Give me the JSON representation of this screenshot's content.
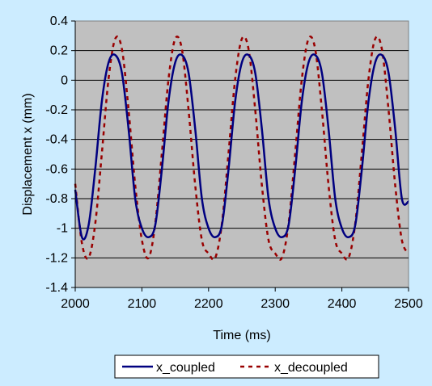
{
  "chart_data": {
    "type": "line",
    "title": "",
    "xlabel": "Time (ms)",
    "ylabel": "Displacement x (mm)",
    "xlim": [
      2000,
      2500
    ],
    "ylim": [
      -1.4,
      0.4
    ],
    "x_ticks": [
      2000,
      2100,
      2200,
      2300,
      2400,
      2500
    ],
    "y_ticks": [
      0.4,
      0.2,
      0,
      -0.2,
      -0.4,
      -0.6,
      -0.8,
      -1,
      -1.2,
      -1.4
    ],
    "x_tick_labels": [
      "2000",
      "2100",
      "2200",
      "2300",
      "2400",
      "2500"
    ],
    "y_tick_labels": [
      "0.4",
      "0.2",
      "0",
      "-0.2",
      "-0.4",
      "-0.6",
      "-0.8",
      "-1",
      "-1.2",
      "-1.4"
    ],
    "grid": true,
    "plot_background": "#c0c0c0",
    "page_background": "#ccecff",
    "legend_position": "bottom",
    "x": [
      2000,
      2010,
      2020,
      2030,
      2040,
      2050,
      2060,
      2070,
      2080,
      2090,
      2100,
      2110,
      2120,
      2130,
      2140,
      2150,
      2160,
      2170,
      2180,
      2190,
      2200,
      2210,
      2220,
      2230,
      2240,
      2250,
      2260,
      2270,
      2280,
      2290,
      2300,
      2310,
      2320,
      2330,
      2340,
      2350,
      2360,
      2370,
      2380,
      2390,
      2400,
      2410,
      2420,
      2430,
      2440,
      2450,
      2460,
      2470,
      2480,
      2490,
      2500
    ],
    "series": [
      {
        "name": "x_coupled",
        "color": "#000080",
        "line_style": "solid",
        "values": [
          -0.74,
          -1.06,
          -0.98,
          -0.6,
          -0.14,
          0.12,
          0.17,
          0.05,
          -0.33,
          -0.8,
          -1.0,
          -1.06,
          -0.98,
          -0.6,
          -0.14,
          0.12,
          0.17,
          0.05,
          -0.33,
          -0.8,
          -1.0,
          -1.06,
          -0.98,
          -0.6,
          -0.14,
          0.12,
          0.17,
          0.05,
          -0.33,
          -0.8,
          -1.0,
          -1.06,
          -0.98,
          -0.6,
          -0.14,
          0.12,
          0.17,
          0.05,
          -0.33,
          -0.8,
          -1.0,
          -1.06,
          -0.98,
          -0.6,
          -0.14,
          0.12,
          0.17,
          0.05,
          -0.33,
          -0.8,
          -0.82
        ]
      },
      {
        "name": "x_decoupled",
        "color": "#990000",
        "line_style": "dashed",
        "values": [
          -0.7,
          -1.1,
          -1.2,
          -0.97,
          -0.49,
          0.01,
          0.28,
          0.21,
          -0.2,
          -0.71,
          -1.08,
          -1.2,
          -0.97,
          -0.49,
          0.01,
          0.28,
          0.21,
          -0.2,
          -0.71,
          -1.08,
          -1.17,
          -1.2,
          -0.97,
          -0.49,
          0.01,
          0.28,
          0.21,
          -0.2,
          -0.71,
          -1.08,
          -1.17,
          -1.2,
          -0.97,
          -0.49,
          0.01,
          0.28,
          0.21,
          -0.2,
          -0.71,
          -1.08,
          -1.17,
          -1.2,
          -0.97,
          -0.49,
          0.01,
          0.28,
          0.21,
          -0.2,
          -0.71,
          -1.08,
          -1.17
        ]
      }
    ]
  }
}
